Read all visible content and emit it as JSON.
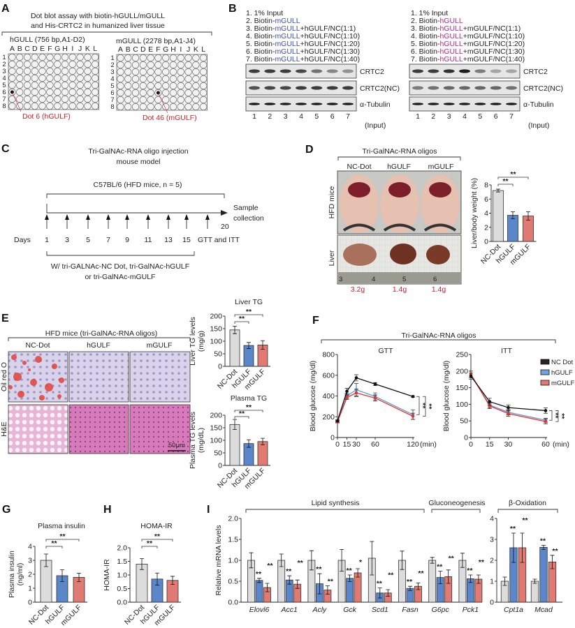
{
  "colors": {
    "nc": "#dcdcdc",
    "hgulf": "#5b86c9",
    "mgulf": "#e07a72",
    "line_nc": "#111111",
    "line_hgulf": "#5b9bd5",
    "line_mgulf": "#e8322f",
    "highlight_red": "#d2202a",
    "mgull_blue": "#3a4fa8",
    "hgull_magenta": "#b0288f"
  },
  "panelA": {
    "label": "A",
    "title1": "Dot blot assay with biotin-hGULL/mGULL",
    "title2": "and His-CRTC2 in humanized liver tissue",
    "grid_left_title": "hGULL (756 bp,A1-D2)",
    "grid_right_title": "mGULL (2278 bp,A1-J4)",
    "columns": [
      "A",
      "B",
      "C",
      "D",
      "E",
      "F",
      "G",
      "H",
      "I",
      "J",
      "K",
      "L"
    ],
    "rows": [
      "1",
      "2",
      "3",
      "4",
      "5",
      "6",
      "7",
      "8"
    ],
    "left_dot_callout": "Dot 6 (hGULF)",
    "right_dot_callout": "Dot 46 (mGULF)"
  },
  "panelB": {
    "label": "B",
    "left_list": [
      [
        "1. 1% Input",
        "",
        ""
      ],
      [
        "2. Biotin-",
        "mGULL",
        ""
      ],
      [
        "3. Biotin-",
        "mGULL",
        "+hGULF/NC(1:1)"
      ],
      [
        "4. Biotin-",
        "mGULL",
        "+hGULF/NC(1:10)"
      ],
      [
        "5. Biotin-",
        "mGULL",
        "+hGULF/NC(1:20)"
      ],
      [
        "6. Biotin-",
        "mGULL",
        "+hGULF/NC(1:30)"
      ],
      [
        "7. Biotin-",
        "mGULL",
        "+hGULF/NC(1:40)"
      ]
    ],
    "right_list": [
      [
        "1. 1% Input",
        "",
        ""
      ],
      [
        "2. Biotin-",
        "hGULL",
        ""
      ],
      [
        "3. Biotin-",
        "hGULL",
        "+mGULF/NC(1:1)"
      ],
      [
        "4. Biotin-",
        "hGULL",
        "+mGULF/NC(1:10)"
      ],
      [
        "5. Biotin-",
        "hGULL",
        "+mGULF/NC(1:20)"
      ],
      [
        "6. Biotin-",
        "hGULL",
        "+mGULF/NC(1:30)"
      ],
      [
        "7. Biotin-",
        "hGULL",
        "+mGULF/NC(1:40)"
      ]
    ],
    "blot_labels": [
      "CRTC2",
      "CRTC2(NC)",
      "α-Tubulin"
    ],
    "input_label": "(Input)",
    "lanes": [
      "1",
      "2",
      "3",
      "4",
      "5",
      "6",
      "7"
    ],
    "band_intensity_left": [
      [
        0.8,
        0.8,
        0.8,
        0.75,
        0.55,
        0.45,
        0.4
      ],
      [
        0.7,
        0.75,
        0.75,
        0.8,
        0.8,
        0.8,
        0.8
      ],
      [
        0.95,
        0.95,
        0.95,
        0.95,
        0.95,
        0.95,
        0.95
      ]
    ],
    "band_intensity_right": [
      [
        0.8,
        0.8,
        0.85,
        0.95,
        0.5,
        0.3,
        0.3
      ],
      [
        0.5,
        0.55,
        0.6,
        0.6,
        0.6,
        0.6,
        0.55
      ],
      [
        0.95,
        0.95,
        0.95,
        0.95,
        0.95,
        0.95,
        0.95
      ]
    ]
  },
  "panelC": {
    "label": "C",
    "title1": "Tri-GalNAc-RNA oligo injection",
    "title2": "mouse model",
    "strain": "C57BL/6 (HFD mice, n = 5)",
    "days_label": "Days",
    "days": [
      "1",
      "3",
      "5",
      "7",
      "9",
      "11",
      "13",
      "15"
    ],
    "gtt_itt": "GTT and ITT",
    "end_day": "20",
    "sample1": "Sample",
    "sample2": "collection",
    "treatment1": "W/ tri-GALNAc-NC Dot, tri-GalNAc-hGULF",
    "treatment2": "or tri-GalNAc-mGULF"
  },
  "panelD": {
    "label": "D",
    "title": "Tri-GalNAc-RNA oligos",
    "groups": [
      "NC-Dot",
      "hGULF",
      "mGULF"
    ],
    "row_labels": [
      "HFD mice",
      "Liver"
    ],
    "ruler_marks": [
      "3",
      "4",
      "5",
      "6"
    ],
    "liver_weights": [
      "3.2g",
      "1.4g",
      "1.4g"
    ]
  },
  "panelE": {
    "label": "E",
    "title": "HFD mice (tri-GalNAc-RNA oligos)",
    "groups": [
      "NC-Dot",
      "hGULF",
      "mGULF"
    ],
    "row_labels": [
      "Oil red O",
      "H&E"
    ],
    "scale_bar": "50μm"
  },
  "panelF": {
    "label": "F",
    "title": "Tri-GalNAc-RNA oligos",
    "legend": [
      "NC Dot",
      "hGULF",
      "mGULF"
    ]
  },
  "panelG": {
    "label": "G"
  },
  "panelH": {
    "label": "H"
  },
  "panelI": {
    "label": "I",
    "groups": [
      "Lipid synthesis",
      "Gluconeogenesis",
      "β-Oxidation"
    ]
  },
  "chart_data": [
    {
      "id": "D",
      "type": "bar",
      "title": "",
      "ylabel": "Liver/body weight (%)",
      "categories": [
        "NC-Dot",
        "hGULF",
        "mGULF"
      ],
      "values": [
        7.2,
        3.7,
        3.6
      ],
      "errors": [
        0.2,
        0.5,
        0.6
      ],
      "ylim": [
        0,
        8
      ],
      "yticks": [
        "0",
        "2",
        "4",
        "6",
        "8"
      ],
      "significance": [
        "**",
        "**"
      ]
    },
    {
      "id": "E_liver",
      "type": "bar",
      "title": "Liver TG",
      "ylabel": "Liver TG levels",
      "ylabel2": "(mg/g)",
      "categories": [
        "NC-Dot",
        "hGULF",
        "mGULF"
      ],
      "values": [
        145,
        83,
        85
      ],
      "errors": [
        15,
        12,
        17
      ],
      "ylim": [
        0,
        200
      ],
      "yticks": [
        "0",
        "50",
        "100",
        "150",
        "200"
      ],
      "significance": [
        "**",
        "**"
      ]
    },
    {
      "id": "E_plasma",
      "type": "bar",
      "title": "Plasma TG",
      "ylabel": "Plasma TG levels",
      "ylabel2": "(mg/dL)",
      "categories": [
        "NC-Dot",
        "hGULF",
        "mGULF"
      ],
      "values": [
        163,
        87,
        95
      ],
      "errors": [
        20,
        15,
        13
      ],
      "ylim": [
        0,
        200
      ],
      "yticks": [
        "0",
        "50",
        "100",
        "150",
        "200"
      ],
      "significance": [
        "**",
        "**"
      ]
    },
    {
      "id": "F_GTT",
      "type": "line",
      "title": "GTT",
      "ylabel": "Blood glucose (mg/dl)",
      "xlabel": "(min)",
      "x": [
        0,
        15,
        30,
        60,
        120
      ],
      "xticks": [
        "0",
        "15",
        "30",
        "60",
        "120"
      ],
      "ylim": [
        0,
        800
      ],
      "xlim": [
        0,
        120
      ],
      "yticks": [
        "0",
        "200",
        "400",
        "600",
        "800"
      ],
      "series": [
        {
          "name": "NC Dot",
          "values": [
            160,
            445,
            575,
            515,
            395
          ],
          "errors": [
            10,
            30,
            30,
            15,
            8
          ]
        },
        {
          "name": "hGULF",
          "values": [
            155,
            400,
            460,
            395,
            220
          ],
          "errors": [
            10,
            25,
            60,
            35,
            45
          ]
        },
        {
          "name": "mGULF",
          "values": [
            150,
            385,
            430,
            380,
            205
          ],
          "errors": [
            10,
            20,
            35,
            30,
            30
          ]
        }
      ],
      "significance": [
        "**",
        "**"
      ]
    },
    {
      "id": "F_ITT",
      "type": "line",
      "title": "ITT",
      "ylabel": "Blood glucose (mg/dl)",
      "xlabel": "(min)",
      "x": [
        0,
        15,
        30,
        60
      ],
      "xticks": [
        "0",
        "15",
        "30",
        "60"
      ],
      "ylim": [
        0,
        250
      ],
      "xlim": [
        0,
        60
      ],
      "yticks": [
        "0",
        "50",
        "100",
        "150",
        "200",
        "250"
      ],
      "series": [
        {
          "name": "NC Dot",
          "values": [
            185,
            108,
            90,
            81
          ],
          "errors": [
            10,
            10,
            8,
            8
          ]
        },
        {
          "name": "hGULF",
          "values": [
            190,
            98,
            76,
            52
          ],
          "errors": [
            10,
            8,
            8,
            6
          ]
        },
        {
          "name": "mGULF",
          "values": [
            190,
            95,
            72,
            48
          ],
          "errors": [
            10,
            8,
            8,
            7
          ]
        }
      ],
      "significance": [
        "**",
        "**"
      ]
    },
    {
      "id": "G",
      "type": "bar",
      "title": "Plasma insulin",
      "ylabel": "Plasma insulin",
      "ylabel2": "(ng/ml)",
      "categories": [
        "NC-Dot",
        "hGULF",
        "mGULF"
      ],
      "values": [
        3.0,
        1.9,
        1.78
      ],
      "errors": [
        0.45,
        0.42,
        0.3
      ],
      "ylim": [
        0,
        4
      ],
      "yticks": [
        "0",
        "1",
        "2",
        "3",
        "4"
      ],
      "significance": [
        "**",
        "**"
      ]
    },
    {
      "id": "H",
      "type": "bar",
      "title": "HOMA-IR",
      "ylabel": "HOMA-IR",
      "categories": [
        "NC-Dot",
        "hGULF",
        "mGULF"
      ],
      "values": [
        1.4,
        0.85,
        0.8
      ],
      "errors": [
        0.2,
        0.22,
        0.15
      ],
      "ylim": [
        0,
        2
      ],
      "yticks": [
        "0.0",
        "0.5",
        "1.0",
        "1.5",
        "2.0"
      ],
      "significance": [
        "**",
        "**"
      ]
    },
    {
      "id": "I_lipid",
      "type": "bar",
      "title": "",
      "ylabel": "Relative mRNA levels",
      "categories": [
        "Elovl6",
        "Acc1",
        "Acly",
        "Gck",
        "Scd1",
        "Fasn",
        "G6pc",
        "Pck1"
      ],
      "ylim": [
        0,
        2
      ],
      "yticks": [
        "0.0",
        "0.5",
        "1.0",
        "1.5",
        "2.0"
      ],
      "series": [
        {
          "name": "NC-Dot",
          "values": [
            1.0,
            1.0,
            1.0,
            1.0,
            1.05,
            1.0,
            1.0,
            1.0
          ],
          "errors": [
            0.18,
            0.15,
            0.23,
            0.26,
            0.4,
            0.22,
            0.07,
            0.17
          ]
        },
        {
          "name": "hGULF",
          "values": [
            0.52,
            0.53,
            0.44,
            0.57,
            0.22,
            0.33,
            0.59,
            0.56
          ],
          "errors": [
            0.05,
            0.1,
            0.24,
            0.08,
            0.12,
            0.05,
            0.15,
            0.09
          ]
        },
        {
          "name": "mGULF",
          "values": [
            0.35,
            0.43,
            0.29,
            0.7,
            0.22,
            0.38,
            0.61,
            0.55
          ],
          "errors": [
            0.1,
            0.1,
            0.1,
            0.1,
            0.08,
            0.08,
            0.16,
            0.1
          ]
        }
      ],
      "significance": [
        [
          "**",
          "**"
        ],
        [
          "**",
          "**"
        ],
        [
          "**",
          "**"
        ],
        [
          "**",
          "*"
        ],
        [
          "**",
          "**"
        ],
        [
          "**",
          "**"
        ],
        [
          "**",
          "**"
        ],
        [
          "**",
          "**"
        ]
      ]
    },
    {
      "id": "I_beta",
      "type": "bar",
      "title": "",
      "ylabel": "",
      "categories": [
        "Cpt1a",
        "Mcad"
      ],
      "ylim": [
        0,
        4
      ],
      "yticks": [
        "0",
        "1",
        "2",
        "3",
        "4"
      ],
      "series": [
        {
          "name": "NC-Dot",
          "values": [
            1.0,
            1.0
          ],
          "errors": [
            0.2,
            0.1
          ]
        },
        {
          "name": "hGULF",
          "values": [
            2.6,
            2.62
          ],
          "errors": [
            0.7,
            0.1
          ]
        },
        {
          "name": "mGULF",
          "values": [
            2.6,
            1.92
          ],
          "errors": [
            0.7,
            0.32
          ]
        }
      ],
      "significance": [
        [
          "**",
          "**"
        ],
        [
          "**",
          "**"
        ]
      ]
    }
  ]
}
